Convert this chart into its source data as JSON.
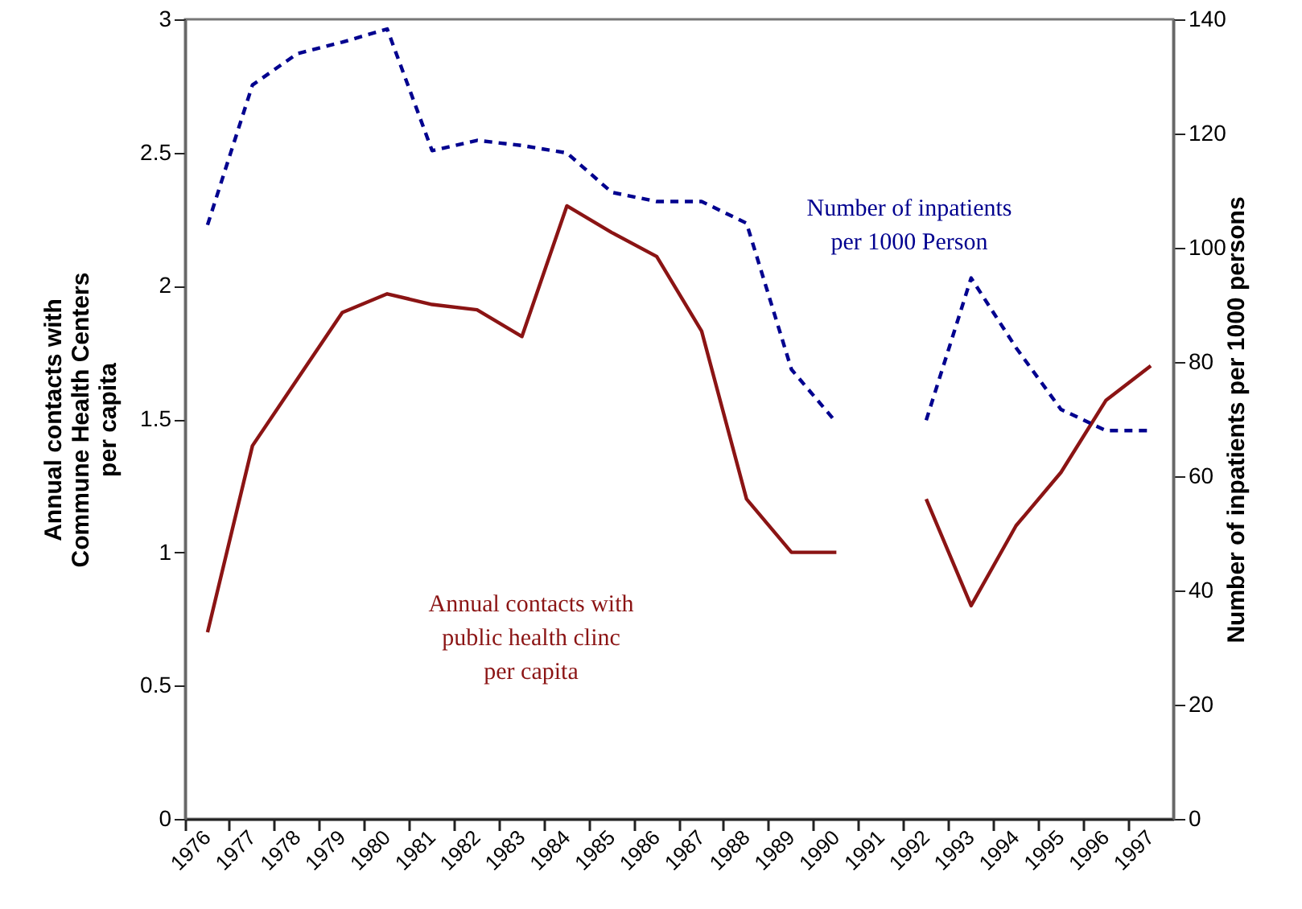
{
  "chart_data": {
    "type": "line",
    "ylabel": "Annual contacts with Commune Health Centers per capita",
    "y2label": "Number of inpatients per 1000 persons",
    "categories": [
      "1976",
      "1977",
      "1978",
      "1979",
      "1980",
      "1981",
      "1982",
      "1983",
      "1984",
      "1985",
      "1986",
      "1987",
      "1988",
      "1989",
      "1990",
      "1991",
      "1992",
      "1993",
      "1994",
      "1995",
      "1996",
      "1997"
    ],
    "series": [
      {
        "name": "Annual contacts with public health clinc per capita",
        "color": "#8b1414",
        "line_style": "solid",
        "values": [
          0.7,
          1.4,
          1.65,
          1.9,
          1.97,
          1.93,
          1.91,
          1.81,
          2.3,
          2.2,
          2.11,
          1.83,
          1.2,
          1.0,
          1.0,
          null,
          1.2,
          0.8,
          1.1,
          1.3,
          1.57,
          1.7
        ]
      },
      {
        "name": "Number of inpatients per 1000 Person",
        "color": "#00008f",
        "line_style": "dashed",
        "axis": "y2",
        "values": [
          104,
          128.5,
          134,
          136,
          138.3,
          117,
          118.8,
          117.9,
          116.6,
          109.7,
          108.1,
          108.1,
          104.3,
          78.7,
          69.4,
          null,
          69.8,
          94.7,
          82.5,
          71.7,
          68,
          68
        ]
      }
    ],
    "ylim": [
      0,
      3
    ],
    "yticks": [
      0,
      0.5,
      1,
      1.5,
      2,
      2.5,
      3
    ],
    "y2lim": [
      0,
      140
    ],
    "y2ticks": [
      0,
      20,
      40,
      60,
      80,
      100,
      120,
      140
    ],
    "grid": false
  }
}
